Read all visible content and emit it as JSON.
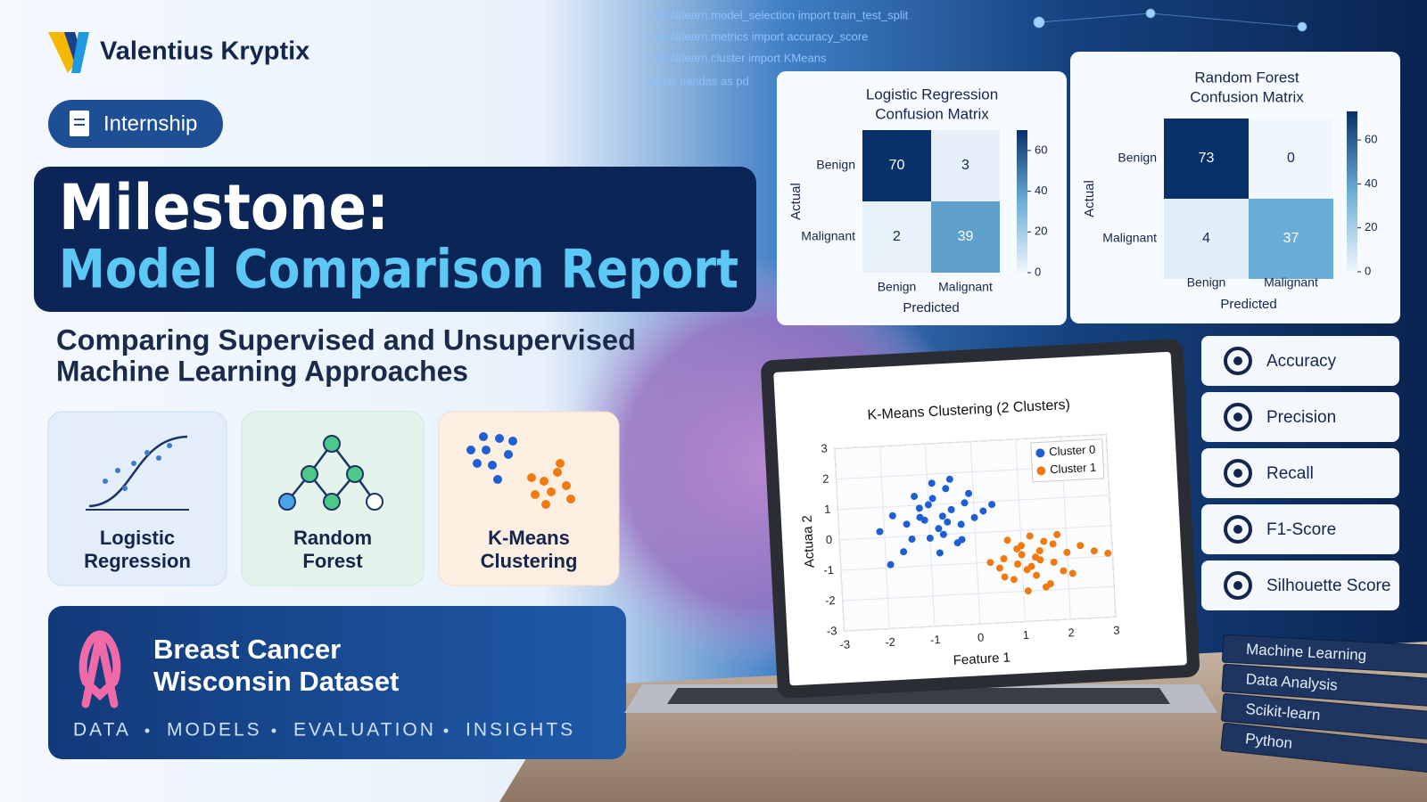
{
  "brand": {
    "name": "Valentius Kryptix"
  },
  "badge": "Internship",
  "title": {
    "line1": "Milestone:",
    "line2": "Model Comparison Report"
  },
  "subtitle": [
    "Comparing Supervised and Unsupervised",
    "Machine Learning Approaches"
  ],
  "models": [
    {
      "lines": [
        "Logistic",
        "Regression"
      ]
    },
    {
      "lines": [
        "Random",
        "Forest"
      ]
    },
    {
      "lines": [
        "K-Means",
        "Clustering"
      ]
    }
  ],
  "dataset": {
    "title": [
      "Breast Cancer",
      "Wisconsin Dataset"
    ],
    "tags": [
      "DATA",
      "MODELS",
      "EVALUATION",
      "INSIGHTS"
    ]
  },
  "code": [
    "from sklearn.model_selection import train_test_split",
    "from sklearn.metrics import accuracy_score",
    "from sklearn.cluster import KMeans",
    "import pandas as pd"
  ],
  "confusion_matrices": [
    {
      "type": "heatmap",
      "title": [
        "Logistic Regression",
        "Confusion Matrix"
      ],
      "x_label": "Predicted",
      "y_label": "Actual",
      "x_categories": [
        "Benign",
        "Malignant"
      ],
      "y_categories": [
        "Benign",
        "Malignant"
      ],
      "values": [
        [
          70,
          3
        ],
        [
          2,
          39
        ]
      ],
      "clim": [
        0,
        70
      ],
      "cticks": [
        0,
        20,
        40,
        60
      ]
    },
    {
      "type": "heatmap",
      "title": [
        "Random Forest",
        "Confusion Matrix"
      ],
      "x_label": "Predicted",
      "y_label": "Actual",
      "x_categories": [
        "Benign",
        "Malignant"
      ],
      "y_categories": [
        "Benign",
        "Malignant"
      ],
      "values": [
        [
          73,
          0
        ],
        [
          4,
          37
        ]
      ],
      "clim": [
        0,
        73
      ],
      "cticks": [
        0,
        20,
        40,
        60
      ]
    }
  ],
  "kmeans": {
    "type": "scatter",
    "title": "K-Means Clustering (2 Clusters)",
    "x_label": "Feature 1",
    "y_label": "Actuaa 2",
    "xlim": [
      -3,
      3
    ],
    "ylim": [
      -3,
      3
    ],
    "xticks": [
      -3,
      -2,
      -1,
      0,
      1,
      2,
      3
    ],
    "yticks": [
      -3,
      -2,
      -1,
      0,
      1,
      2,
      3
    ],
    "grid": true,
    "series": [
      {
        "name": "Cluster 0",
        "color": "#1f5fd6",
        "x": [
          -0.7,
          -1.2,
          -0.3,
          -0.9,
          -1.5,
          -0.5,
          0.0,
          -1.0,
          -0.6,
          -1.8,
          -0.2,
          -0.8,
          -1.3,
          -0.4,
          0.2,
          -1.1,
          -0.7,
          -1.6,
          -0.9,
          -0.1,
          -1.4,
          -0.6,
          -2.1,
          0.4,
          -0.8,
          -1.0,
          -0.3,
          -1.9,
          -0.5,
          -1.2
        ],
        "y": [
          0.6,
          0.9,
          0.3,
          1.2,
          0.4,
          0.8,
          0.5,
          -0.1,
          1.5,
          0.7,
          1.0,
          0.2,
          1.3,
          -0.3,
          0.7,
          0.5,
          0.0,
          -0.5,
          1.7,
          1.3,
          -0.1,
          0.4,
          0.2,
          0.9,
          -0.6,
          1.0,
          -0.2,
          -0.9,
          1.8,
          0.6
        ]
      },
      {
        "name": "Cluster 1",
        "color": "#f07a10",
        "x": [
          1.3,
          0.9,
          1.7,
          1.1,
          1.5,
          0.6,
          2.0,
          1.2,
          0.8,
          1.9,
          1.4,
          1.0,
          2.3,
          0.5,
          1.6,
          1.3,
          2.6,
          0.7,
          1.8,
          1.1,
          0.3,
          2.1,
          1.4,
          0.9,
          1.7,
          1.2,
          2.9,
          1.5,
          0.6,
          1.0
        ],
        "y": [
          -0.9,
          -0.6,
          -1.1,
          -1.3,
          -0.4,
          -0.9,
          -0.8,
          -0.2,
          -1.6,
          -1.4,
          -1.0,
          -0.5,
          -0.6,
          -1.2,
          -1.8,
          -1.5,
          -0.8,
          -0.3,
          -0.2,
          -2.0,
          -1.0,
          -1.5,
          -0.7,
          -1.1,
          -0.5,
          -1.2,
          -0.9,
          -1.9,
          -1.5,
          -0.8
        ]
      }
    ]
  },
  "metrics": [
    "Accuracy",
    "Precision",
    "Recall",
    "F1-Score",
    "Silhouette Score"
  ],
  "books": [
    "Machine Learning",
    "Data Analysis",
    "Scikit-learn",
    "Python"
  ]
}
